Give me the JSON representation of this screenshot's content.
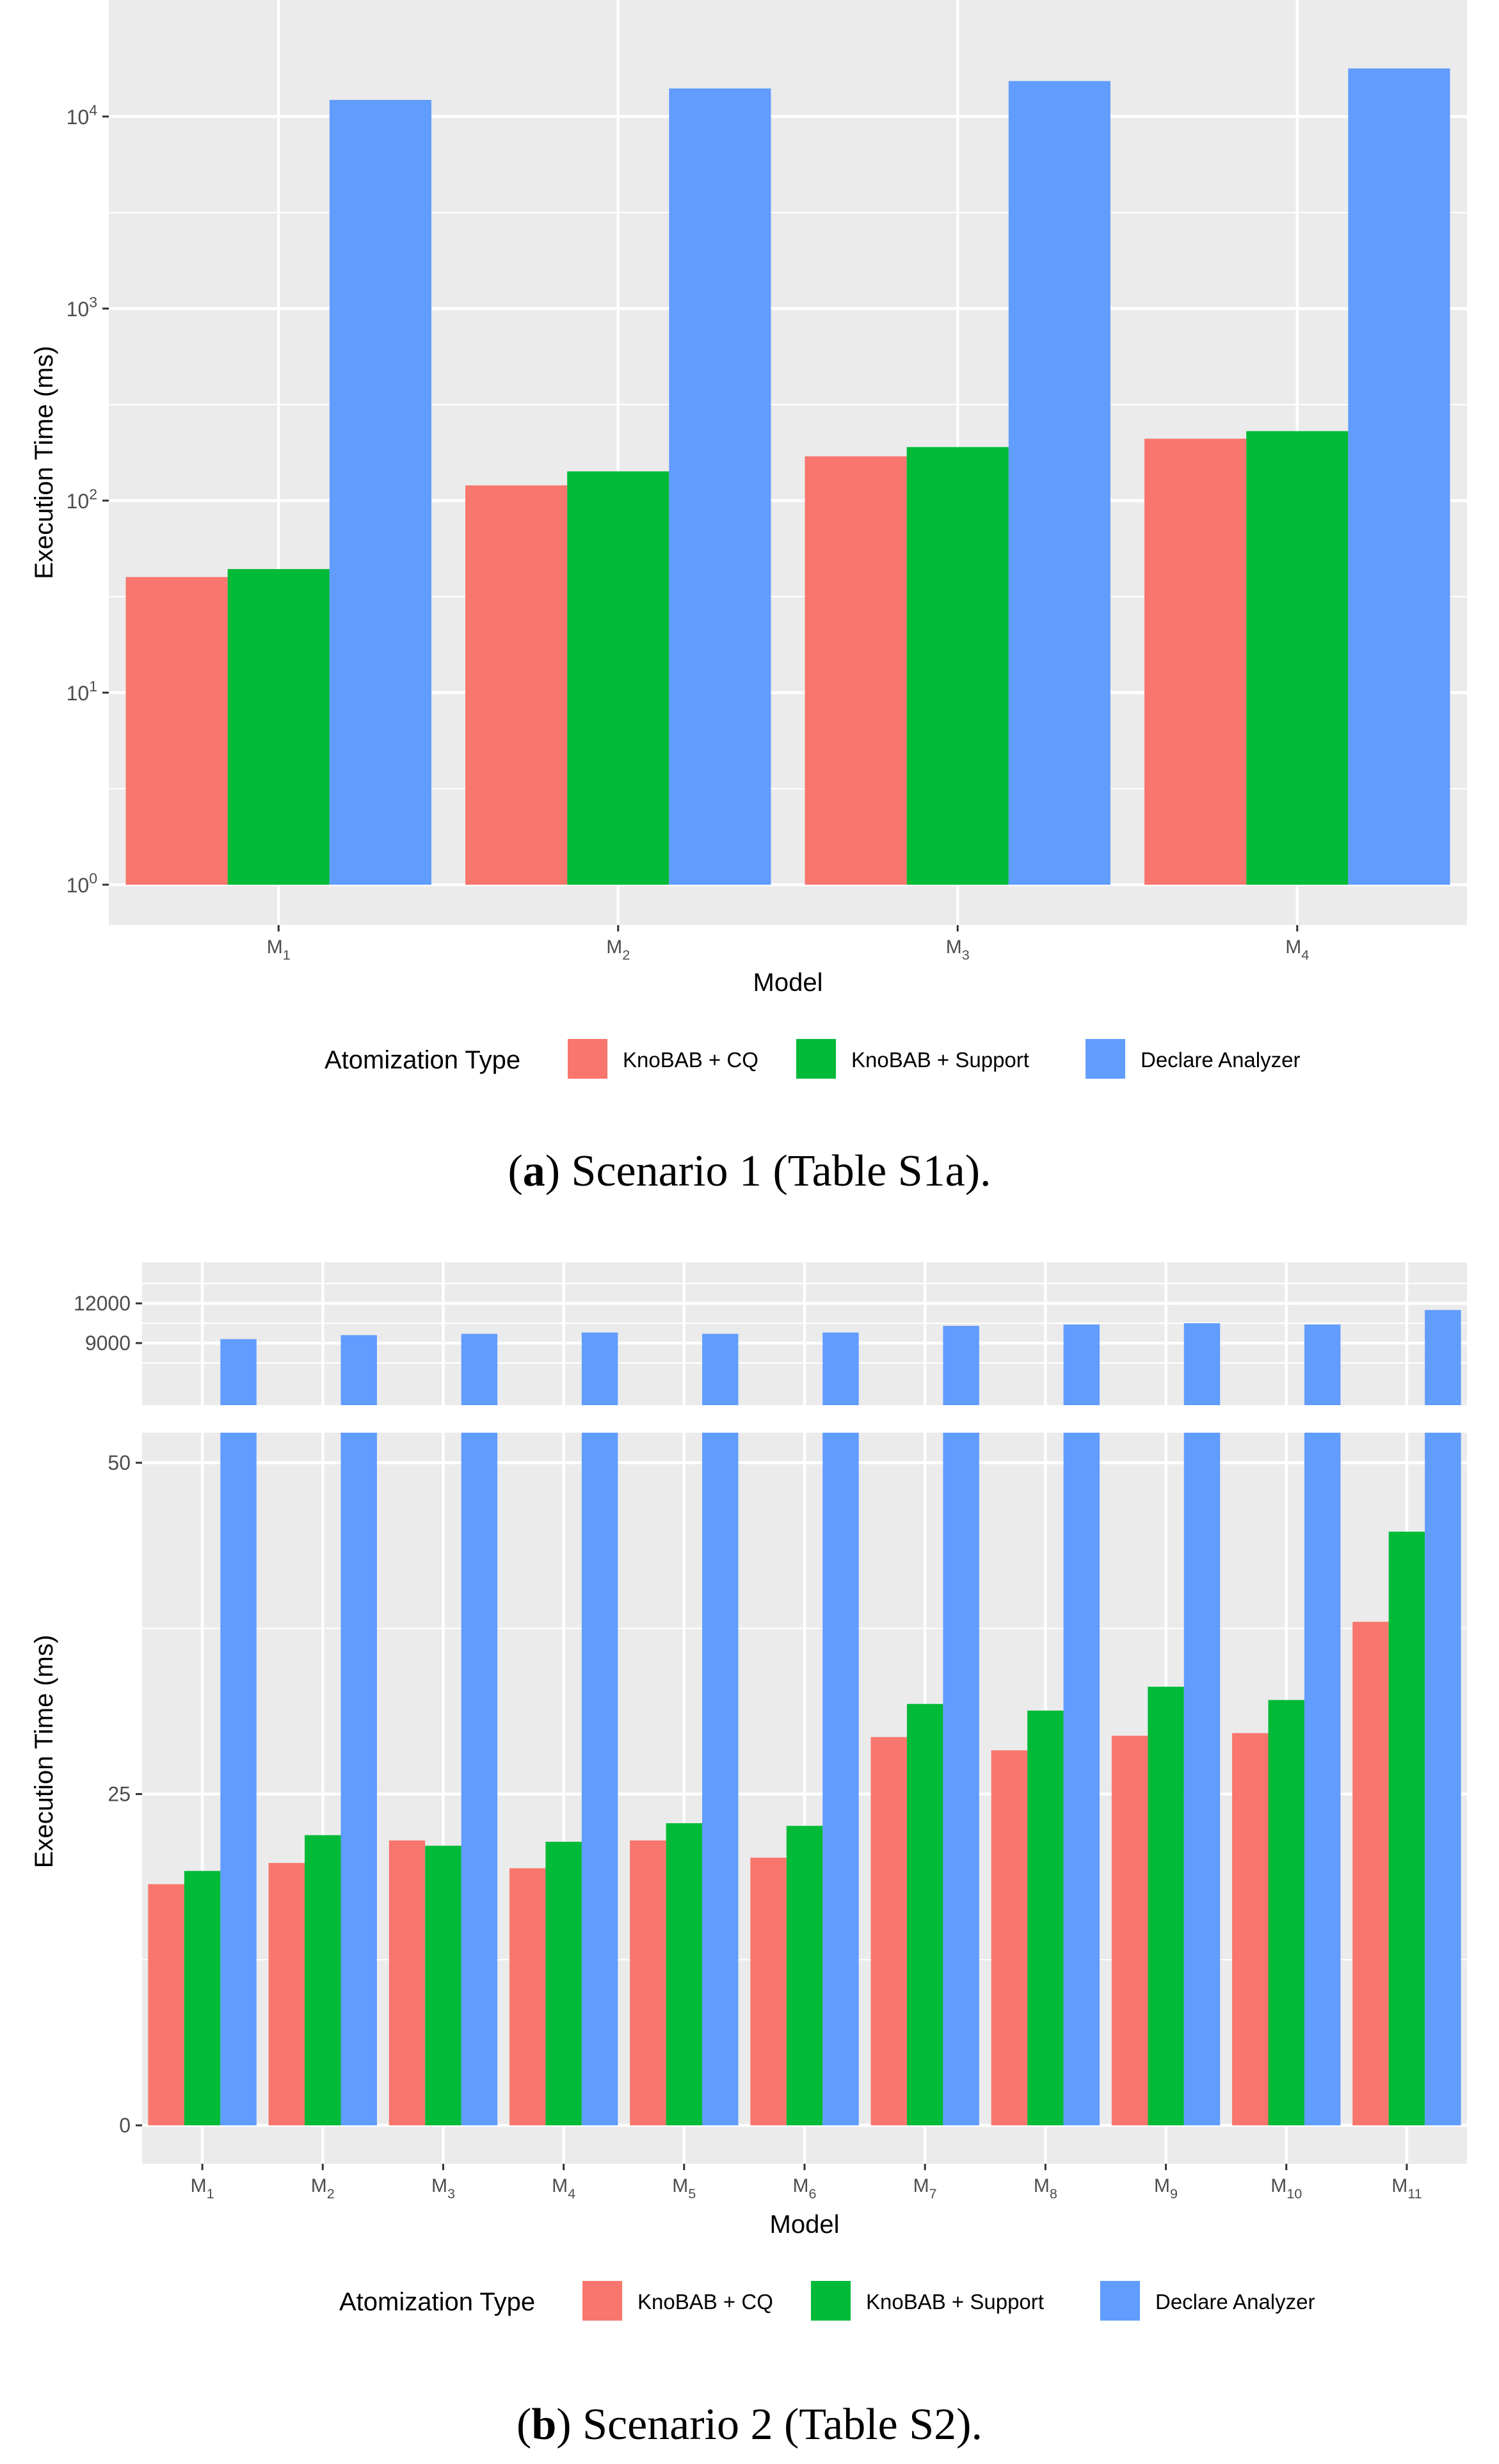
{
  "chart_data": [
    {
      "type": "bar",
      "panel": "a",
      "scale": "log10",
      "xlabel": "Model",
      "ylabel": "Execution Time (ms)",
      "ylim": [
        1,
        20000
      ],
      "yticks": [
        {
          "base": "10",
          "exp": "0",
          "value": 1
        },
        {
          "base": "10",
          "exp": "1",
          "value": 10
        },
        {
          "base": "10",
          "exp": "2",
          "value": 100
        },
        {
          "base": "10",
          "exp": "3",
          "value": 1000
        },
        {
          "base": "10",
          "exp": "4",
          "value": 10000
        }
      ],
      "categories": [
        {
          "main": "M",
          "sub": "1"
        },
        {
          "main": "M",
          "sub": "2"
        },
        {
          "main": "M",
          "sub": "3"
        },
        {
          "main": "M",
          "sub": "4"
        }
      ],
      "series": [
        {
          "name": "KnoBAB + CQ",
          "color": "#F8766D",
          "values": [
            40,
            120,
            170,
            210
          ]
        },
        {
          "name": "KnoBAB + Support",
          "color": "#00BA38",
          "values": [
            44,
            142,
            190,
            230
          ]
        },
        {
          "name": "Declare Analyzer",
          "color": "#619CFF",
          "values": [
            12200,
            14000,
            15300,
            17800
          ]
        }
      ],
      "legend": {
        "title": "Atomization Type",
        "position": "bottom"
      },
      "grid": true
    },
    {
      "type": "bar",
      "panel": "b",
      "scale": "broken-axis",
      "xlabel": "Model",
      "ylabel": "Execution Time (ms)",
      "ylim_lower": [
        0,
        52
      ],
      "ylim_upper": [
        5000,
        13200
      ],
      "yticks_lower": [
        "0",
        "25",
        "50"
      ],
      "yticks_lower_values": [
        0,
        25,
        50
      ],
      "yticks_upper": [
        "9000",
        "12000"
      ],
      "yticks_upper_values": [
        9000,
        12000
      ],
      "categories": [
        {
          "main": "M",
          "sub": "1"
        },
        {
          "main": "M",
          "sub": "2"
        },
        {
          "main": "M",
          "sub": "3"
        },
        {
          "main": "M",
          "sub": "4"
        },
        {
          "main": "M",
          "sub": "5"
        },
        {
          "main": "M",
          "sub": "6"
        },
        {
          "main": "M",
          "sub": "7"
        },
        {
          "main": "M",
          "sub": "8"
        },
        {
          "main": "M",
          "sub": "9"
        },
        {
          "main": "M",
          "sub": "10"
        },
        {
          "main": "M",
          "sub": "11"
        }
      ],
      "series": [
        {
          "name": "KnoBAB + CQ",
          "color": "#F8766D",
          "values": [
            18.2,
            19.8,
            21.5,
            19.4,
            21.5,
            20.2,
            29.3,
            28.3,
            29.4,
            29.6,
            38.0
          ]
        },
        {
          "name": "KnoBAB + Support",
          "color": "#00BA38",
          "values": [
            19.2,
            21.9,
            21.1,
            21.4,
            22.8,
            22.6,
            31.8,
            31.3,
            33.1,
            32.1,
            44.8
          ]
        },
        {
          "name": "Declare Analyzer",
          "color": "#619CFF",
          "values": [
            9300,
            9600,
            9700,
            9800,
            9700,
            9800,
            10300,
            10400,
            10500,
            10400,
            11500
          ]
        }
      ],
      "legend": {
        "title": "Atomization Type",
        "position": "bottom"
      },
      "grid": true
    }
  ],
  "captions": {
    "a": {
      "letter": "a",
      "text": ") Scenario 1 (Table S1a)."
    },
    "b": {
      "letter": "b",
      "text": ") Scenario 2 (Table S2)."
    }
  }
}
